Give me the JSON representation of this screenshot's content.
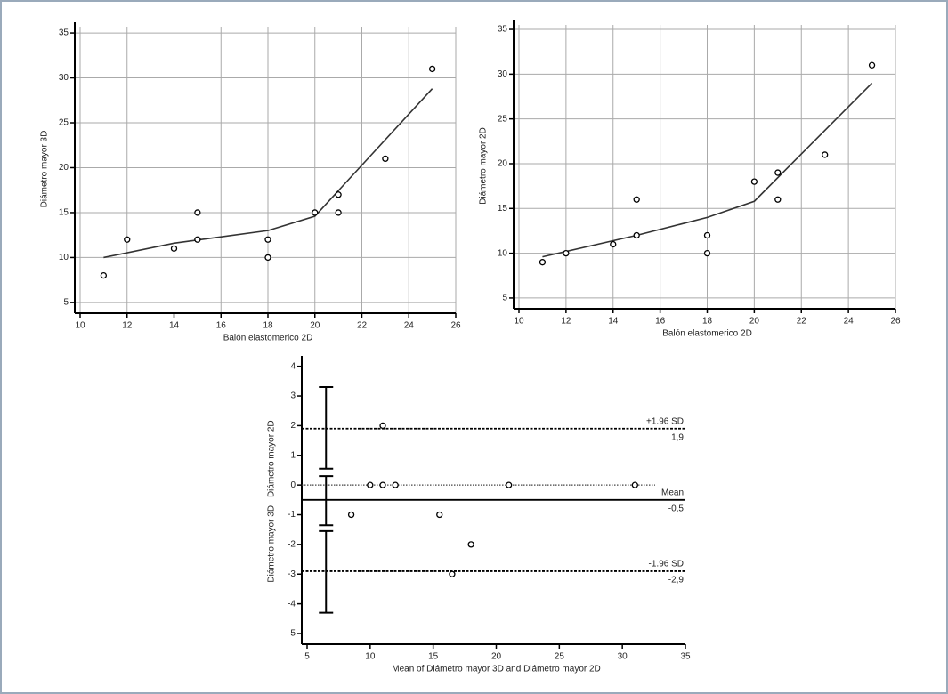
{
  "chart_data": [
    {
      "type": "scatter",
      "x_label": "Balón elastomerico 2D",
      "y_label": "Diámetro mayor 3D",
      "points": {
        "x": [
          11,
          12,
          14,
          15,
          15,
          18,
          18,
          20,
          21,
          21,
          23,
          25
        ],
        "y": [
          8,
          12,
          11,
          15,
          12,
          12,
          10,
          15,
          17,
          15,
          21,
          31
        ]
      },
      "fit": {
        "x": [
          11,
          14,
          18,
          20,
          25
        ],
        "y": [
          10,
          11.6,
          13,
          14.6,
          28.8
        ]
      },
      "xlim": [
        10,
        26
      ],
      "xticks": [
        10,
        12,
        14,
        16,
        18,
        20,
        22,
        24,
        26
      ],
      "ylim": [
        4,
        35.7
      ],
      "yticks": [
        5,
        10,
        15,
        20,
        25,
        30,
        35
      ],
      "grid": true
    },
    {
      "type": "scatter",
      "x_label": "Balón elastomerico 2D",
      "y_label": "Diámetro mayor 2D",
      "points": {
        "x": [
          11,
          12,
          14,
          15,
          15,
          18,
          18,
          20,
          21,
          21,
          23,
          25
        ],
        "y": [
          9,
          10,
          11,
          16,
          12,
          12,
          10,
          18,
          19,
          16,
          21,
          31
        ]
      },
      "fit": {
        "x": [
          11,
          15,
          18,
          20,
          25
        ],
        "y": [
          9.6,
          12,
          14,
          15.8,
          29
        ]
      },
      "xlim": [
        10,
        26
      ],
      "xticks": [
        10,
        12,
        14,
        16,
        18,
        20,
        22,
        24,
        26
      ],
      "ylim": [
        4,
        35.5
      ],
      "yticks": [
        5,
        10,
        15,
        20,
        25,
        30,
        35
      ],
      "grid": true
    },
    {
      "type": "scatter",
      "x_label": "Mean of Diámetro mayor 3D and Diámetro mayor 2D",
      "y_label": "Diámetro mayor 3D - Diámetro mayor 2D",
      "points": {
        "x": [
          8.5,
          10,
          11,
          11,
          12,
          15.5,
          16.5,
          18,
          21,
          31
        ],
        "y": [
          -1,
          0,
          0,
          2,
          0,
          -1,
          -3,
          -2,
          0,
          0
        ]
      },
      "hlines": [
        {
          "value": 1.9,
          "name": "+1.96 SD",
          "label": "1,9",
          "style": "dashed"
        },
        {
          "value": -0.5,
          "name": "Mean",
          "label": "-0,5",
          "style": "solid"
        },
        {
          "value": -2.9,
          "name": "-1.96 SD",
          "label": "-2,9",
          "style": "dashed"
        }
      ],
      "zero_line": true,
      "ci_bars": [
        {
          "x": 6.5,
          "low": 0.55,
          "high": 3.3
        },
        {
          "x": 6.5,
          "low": -1.35,
          "high": 0.3
        },
        {
          "x": 6.5,
          "low": -4.3,
          "high": -1.55
        }
      ],
      "xlim": [
        5,
        35
      ],
      "xticks": [
        5,
        10,
        15,
        20,
        25,
        30,
        35
      ],
      "ylim": [
        -5.3,
        4.2
      ],
      "yticks": [
        -5,
        -4,
        -3,
        -2,
        -1,
        0,
        1,
        2,
        3,
        4
      ],
      "grid": false
    }
  ]
}
